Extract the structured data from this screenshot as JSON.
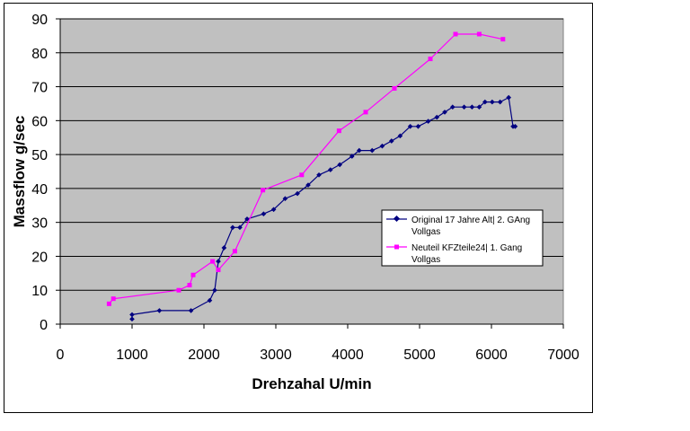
{
  "chart_data": {
    "type": "line",
    "xlabel": "Drehzahal U/min",
    "ylabel": "Massflow g/sec",
    "xlim": [
      0,
      7000
    ],
    "ylim": [
      0,
      90
    ],
    "xticks": [
      "0",
      "1000",
      "2000",
      "3000",
      "4000",
      "5000",
      "6000",
      "7000"
    ],
    "yticks": [
      "0",
      "10",
      "20",
      "30",
      "40",
      "50",
      "60",
      "70",
      "80",
      "90"
    ],
    "grid": "horizontal",
    "legend_position": "right",
    "plot_background": "#c0c0c0",
    "series": [
      {
        "name": "Original 17 Jahre Alt| 2. GAng Vollgas",
        "legend_lines": [
          "Original 17 Jahre Alt| 2. GAng",
          "Vollgas"
        ],
        "color": "#000080",
        "marker": "diamond",
        "points": [
          [
            1000,
            1.5
          ],
          [
            1000,
            2.8
          ],
          [
            1380,
            4.0
          ],
          [
            1820,
            4.0
          ],
          [
            2080,
            7.0
          ],
          [
            2150,
            10.0
          ],
          [
            2200,
            18.5
          ],
          [
            2280,
            22.5
          ],
          [
            2400,
            28.5
          ],
          [
            2500,
            28.5
          ],
          [
            2600,
            31.0
          ],
          [
            2830,
            32.5
          ],
          [
            2970,
            33.8
          ],
          [
            3130,
            37.0
          ],
          [
            3300,
            38.5
          ],
          [
            3450,
            41.0
          ],
          [
            3600,
            44.0
          ],
          [
            3760,
            45.5
          ],
          [
            3890,
            47.0
          ],
          [
            4060,
            49.5
          ],
          [
            4160,
            51.2
          ],
          [
            4340,
            51.2
          ],
          [
            4480,
            52.5
          ],
          [
            4610,
            54.0
          ],
          [
            4730,
            55.5
          ],
          [
            4870,
            58.3
          ],
          [
            4980,
            58.3
          ],
          [
            5120,
            59.8
          ],
          [
            5240,
            61.0
          ],
          [
            5350,
            62.5
          ],
          [
            5460,
            64.0
          ],
          [
            5620,
            64.0
          ],
          [
            5730,
            64.0
          ],
          [
            5830,
            64.0
          ],
          [
            5910,
            65.5
          ],
          [
            6010,
            65.5
          ],
          [
            6120,
            65.5
          ],
          [
            6240,
            66.8
          ],
          [
            6300,
            58.3
          ],
          [
            6330,
            58.3
          ]
        ]
      },
      {
        "name": "Neuteil KFZteile24| 1. Gang Vollgas",
        "legend_lines": [
          "Neuteil KFZteile24| 1. Gang",
          "Vollgas"
        ],
        "color": "#ff00ff",
        "marker": "square",
        "points": [
          [
            680,
            6.0
          ],
          [
            740,
            7.5
          ],
          [
            1650,
            10.0
          ],
          [
            1800,
            11.5
          ],
          [
            1850,
            14.5
          ],
          [
            2120,
            18.5
          ],
          [
            2200,
            16.0
          ],
          [
            2430,
            21.5
          ],
          [
            2820,
            39.5
          ],
          [
            3360,
            44.0
          ],
          [
            3880,
            57.0
          ],
          [
            4250,
            62.5
          ],
          [
            4650,
            69.5
          ],
          [
            5150,
            78.2
          ],
          [
            5500,
            85.5
          ],
          [
            5830,
            85.5
          ],
          [
            6160,
            84.0
          ]
        ]
      }
    ]
  }
}
